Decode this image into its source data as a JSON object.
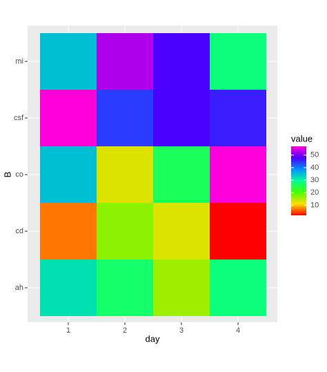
{
  "chart_data": {
    "type": "heatmap",
    "x_label": "day",
    "y_label": "B",
    "legend_title": "value",
    "x": [
      1,
      2,
      3,
      4
    ],
    "categories": [
      "ah",
      "cd",
      "co",
      "csf",
      "mi"
    ],
    "values": [
      [
        32,
        27,
        16,
        28
      ],
      [
        7,
        17,
        13,
        2
      ],
      [
        35,
        13,
        26,
        57
      ],
      [
        57,
        44,
        48,
        46
      ],
      [
        35,
        53,
        48,
        28
      ]
    ],
    "colors": [
      "#FF0000",
      "#FFDB00",
      "#49FF00",
      "#00FF92",
      "#0092FF",
      "#4900FF",
      "#FF00DB"
    ],
    "clim": [
      2,
      57
    ],
    "cticks": [
      10,
      20,
      30,
      40,
      50
    ]
  }
}
